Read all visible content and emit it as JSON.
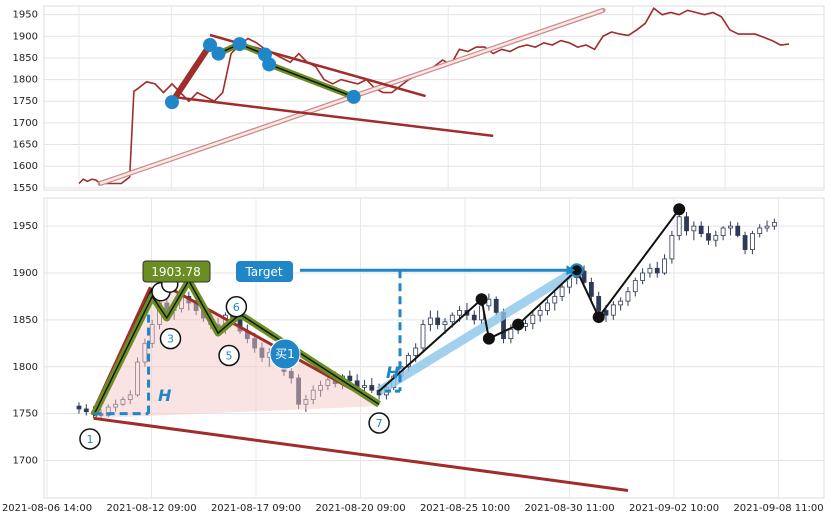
{
  "chart_data": [
    {
      "type": "line",
      "panel": "overview",
      "title": "",
      "xlabel": "",
      "ylabel": "",
      "ylim": [
        1545,
        1970
      ],
      "yticks": [
        1550,
        1600,
        1650,
        1700,
        1750,
        1800,
        1850,
        1900,
        1950
      ],
      "grid": true,
      "series": [
        {
          "color": "#a02c2c",
          "values": [
            [
              0,
              1560
            ],
            [
              1,
              1570
            ],
            [
              2,
              1565
            ],
            [
              3,
              1570
            ],
            [
              4,
              1568
            ],
            [
              5,
              1560
            ],
            [
              10,
              1560
            ],
            [
              12,
              1575
            ],
            [
              13,
              1773
            ],
            [
              14,
              1780
            ],
            [
              16,
              1795
            ],
            [
              18,
              1790
            ],
            [
              20,
              1770
            ],
            [
              22,
              1790
            ],
            [
              24,
              1770
            ],
            [
              26,
              1750
            ],
            [
              28,
              1770
            ],
            [
              30,
              1760
            ],
            [
              32,
              1750
            ],
            [
              34,
              1770
            ],
            [
              36,
              1860
            ],
            [
              38,
              1880
            ],
            [
              40,
              1895
            ],
            [
              42,
              1885
            ],
            [
              44,
              1870
            ],
            [
              46,
              1860
            ],
            [
              48,
              1850
            ],
            [
              50,
              1840
            ],
            [
              52,
              1860
            ],
            [
              54,
              1840
            ],
            [
              56,
              1830
            ],
            [
              58,
              1800
            ],
            [
              60,
              1790
            ],
            [
              62,
              1800
            ],
            [
              64,
              1795
            ],
            [
              66,
              1790
            ],
            [
              68,
              1800
            ],
            [
              70,
              1780
            ],
            [
              72,
              1770
            ],
            [
              74,
              1770
            ],
            [
              76,
              1785
            ],
            [
              78,
              1800
            ],
            [
              80,
              1810
            ],
            [
              82,
              1820
            ],
            [
              84,
              1830
            ],
            [
              86,
              1845
            ],
            [
              88,
              1835
            ],
            [
              90,
              1870
            ],
            [
              92,
              1865
            ],
            [
              94,
              1875
            ],
            [
              96,
              1875
            ],
            [
              98,
              1860
            ],
            [
              100,
              1870
            ],
            [
              102,
              1865
            ],
            [
              104,
              1875
            ],
            [
              106,
              1880
            ],
            [
              108,
              1875
            ],
            [
              110,
              1885
            ],
            [
              112,
              1880
            ],
            [
              114,
              1890
            ],
            [
              116,
              1885
            ],
            [
              118,
              1875
            ],
            [
              120,
              1880
            ],
            [
              122,
              1870
            ],
            [
              124,
              1900
            ],
            [
              126,
              1910
            ],
            [
              128,
              1905
            ],
            [
              130,
              1902
            ],
            [
              132,
              1915
            ],
            [
              134,
              1930
            ],
            [
              136,
              1965
            ],
            [
              138,
              1950
            ],
            [
              140,
              1955
            ],
            [
              142,
              1950
            ],
            [
              144,
              1960
            ],
            [
              146,
              1955
            ],
            [
              148,
              1950
            ],
            [
              150,
              1955
            ],
            [
              152,
              1945
            ],
            [
              154,
              1915
            ],
            [
              156,
              1905
            ],
            [
              158,
              1905
            ],
            [
              160,
              1905
            ],
            [
              162,
              1898
            ],
            [
              164,
              1890
            ],
            [
              166,
              1880
            ],
            [
              168,
              1882
            ]
          ]
        }
      ],
      "overlays": {
        "channel_upper": {
          "from": [
            31,
            1903
          ],
          "to": [
            82,
            1762
          ]
        },
        "channel_lower": {
          "from": [
            22,
            1760
          ],
          "to": [
            98,
            1670
          ]
        },
        "trend_line": {
          "from": [
            5,
            1560
          ],
          "to": [
            124,
            1960
          ]
        },
        "zigzag_points": [
          [
            22,
            1748
          ],
          [
            31,
            1880
          ],
          [
            33,
            1860
          ],
          [
            38,
            1882
          ],
          [
            44,
            1858
          ],
          [
            45,
            1835
          ],
          [
            65,
            1760
          ]
        ],
        "colors": {
          "red": "#a02c2c",
          "green": "#6b8e23",
          "blue": "#1f86c8"
        }
      }
    },
    {
      "type": "candlestick",
      "panel": "main",
      "title": "",
      "xlabel": "",
      "ylabel": "",
      "ylim": [
        1660,
        1980
      ],
      "yticks": [
        1700,
        1750,
        1800,
        1850,
        1900,
        1950
      ],
      "grid": true,
      "xticks": [
        "2021-08-06 14:00",
        "2021-08-12 09:00",
        "2021-08-17 09:00",
        "2021-08-20 09:00",
        "2021-08-25 10:00",
        "2021-08-30 11:00",
        "2021-09-02 10:00",
        "2021-09-08 11:00"
      ],
      "candles": [
        [
          0,
          1758,
          1762,
          1750,
          1755
        ],
        [
          1,
          1755,
          1760,
          1748,
          1752
        ],
        [
          2,
          1752,
          1758,
          1745,
          1750
        ],
        [
          3,
          1750,
          1755,
          1745,
          1748
        ],
        [
          4,
          1748,
          1760,
          1746,
          1757
        ],
        [
          5,
          1757,
          1765,
          1752,
          1760
        ],
        [
          6,
          1760,
          1768,
          1758,
          1765
        ],
        [
          7,
          1765,
          1775,
          1760,
          1770
        ],
        [
          8,
          1770,
          1810,
          1768,
          1805
        ],
        [
          9,
          1805,
          1830,
          1800,
          1825
        ],
        [
          10,
          1825,
          1850,
          1820,
          1845
        ],
        [
          11,
          1845,
          1875,
          1840,
          1868
        ],
        [
          12,
          1868,
          1880,
          1850,
          1860
        ],
        [
          13,
          1860,
          1870,
          1850,
          1862
        ],
        [
          14,
          1862,
          1880,
          1858,
          1875
        ],
        [
          15,
          1875,
          1880,
          1860,
          1868
        ],
        [
          16,
          1868,
          1872,
          1855,
          1860
        ],
        [
          17,
          1860,
          1865,
          1848,
          1852
        ],
        [
          18,
          1852,
          1858,
          1840,
          1845
        ],
        [
          19,
          1845,
          1852,
          1838,
          1840
        ],
        [
          20,
          1840,
          1858,
          1835,
          1855
        ],
        [
          21,
          1855,
          1862,
          1848,
          1850
        ],
        [
          22,
          1850,
          1855,
          1835,
          1838
        ],
        [
          23,
          1838,
          1845,
          1825,
          1830
        ],
        [
          24,
          1830,
          1836,
          1815,
          1820
        ],
        [
          25,
          1820,
          1826,
          1805,
          1810
        ],
        [
          26,
          1810,
          1820,
          1800,
          1815
        ],
        [
          27,
          1815,
          1822,
          1805,
          1808
        ],
        [
          28,
          1808,
          1812,
          1790,
          1795
        ],
        [
          29,
          1795,
          1800,
          1782,
          1788
        ],
        [
          30,
          1788,
          1792,
          1755,
          1760
        ],
        [
          31,
          1760,
          1770,
          1752,
          1765
        ],
        [
          32,
          1765,
          1780,
          1760,
          1775
        ],
        [
          33,
          1775,
          1785,
          1768,
          1780
        ],
        [
          34,
          1780,
          1790,
          1775,
          1786
        ],
        [
          35,
          1786,
          1795,
          1778,
          1782
        ],
        [
          36,
          1782,
          1792,
          1776,
          1790
        ],
        [
          37,
          1790,
          1796,
          1782,
          1785
        ],
        [
          38,
          1785,
          1792,
          1774,
          1778
        ],
        [
          39,
          1778,
          1786,
          1770,
          1780
        ],
        [
          40,
          1780,
          1788,
          1772,
          1775
        ],
        [
          41,
          1775,
          1782,
          1765,
          1770
        ],
        [
          42,
          1770,
          1780,
          1765,
          1778
        ],
        [
          43,
          1778,
          1792,
          1775,
          1790
        ],
        [
          44,
          1790,
          1805,
          1785,
          1800
        ],
        [
          45,
          1800,
          1815,
          1795,
          1812
        ],
        [
          46,
          1812,
          1825,
          1805,
          1820
        ],
        [
          47,
          1820,
          1850,
          1815,
          1845
        ],
        [
          48,
          1845,
          1860,
          1838,
          1852
        ],
        [
          49,
          1852,
          1860,
          1840,
          1845
        ],
        [
          50,
          1845,
          1852,
          1835,
          1848
        ],
        [
          51,
          1848,
          1858,
          1842,
          1855
        ],
        [
          52,
          1855,
          1865,
          1848,
          1860
        ],
        [
          53,
          1860,
          1868,
          1850,
          1855
        ],
        [
          54,
          1855,
          1860,
          1845,
          1850
        ],
        [
          55,
          1850,
          1870,
          1845,
          1865
        ],
        [
          56,
          1865,
          1878,
          1860,
          1872
        ],
        [
          57,
          1872,
          1875,
          1855,
          1858
        ],
        [
          58,
          1858,
          1862,
          1825,
          1830
        ],
        [
          59,
          1830,
          1845,
          1825,
          1840
        ],
        [
          60,
          1840,
          1848,
          1835,
          1843
        ],
        [
          61,
          1843,
          1850,
          1838,
          1846
        ],
        [
          62,
          1846,
          1860,
          1840,
          1855
        ],
        [
          63,
          1855,
          1865,
          1848,
          1860
        ],
        [
          64,
          1860,
          1872,
          1855,
          1868
        ],
        [
          65,
          1868,
          1880,
          1860,
          1875
        ],
        [
          66,
          1875,
          1890,
          1870,
          1885
        ],
        [
          67,
          1885,
          1898,
          1878,
          1895
        ],
        [
          68,
          1895,
          1906,
          1888,
          1902
        ],
        [
          69,
          1902,
          1908,
          1885,
          1890
        ],
        [
          70,
          1890,
          1895,
          1870,
          1875
        ],
        [
          71,
          1875,
          1880,
          1855,
          1860
        ],
        [
          72,
          1860,
          1866,
          1848,
          1855
        ],
        [
          73,
          1855,
          1870,
          1850,
          1866
        ],
        [
          74,
          1866,
          1874,
          1860,
          1870
        ],
        [
          75,
          1870,
          1885,
          1865,
          1880
        ],
        [
          76,
          1880,
          1895,
          1875,
          1892
        ],
        [
          77,
          1892,
          1905,
          1888,
          1900
        ],
        [
          78,
          1900,
          1910,
          1895,
          1905
        ],
        [
          79,
          1905,
          1912,
          1895,
          1900
        ],
        [
          80,
          1900,
          1920,
          1898,
          1915
        ],
        [
          81,
          1915,
          1945,
          1910,
          1940
        ],
        [
          82,
          1940,
          1968,
          1935,
          1960
        ],
        [
          83,
          1960,
          1965,
          1940,
          1945
        ],
        [
          84,
          1945,
          1955,
          1935,
          1950
        ],
        [
          85,
          1950,
          1955,
          1938,
          1942
        ],
        [
          86,
          1942,
          1950,
          1930,
          1935
        ],
        [
          87,
          1935,
          1945,
          1928,
          1940
        ],
        [
          88,
          1940,
          1950,
          1935,
          1948
        ],
        [
          89,
          1948,
          1955,
          1940,
          1950
        ],
        [
          90,
          1950,
          1954,
          1938,
          1940
        ],
        [
          91,
          1940,
          1944,
          1920,
          1925
        ],
        [
          92,
          1925,
          1945,
          1920,
          1942
        ],
        [
          93,
          1942,
          1952,
          1938,
          1948
        ],
        [
          94,
          1948,
          1956,
          1944,
          1950
        ],
        [
          95,
          1950,
          1958,
          1946,
          1954
        ]
      ],
      "labels": {
        "price_box": "1903.78",
        "target": "Target",
        "buy": "买1",
        "h_left": "H",
        "h_right": "H"
      },
      "numbered_points": [
        {
          "label": "1",
          "x": 1.5,
          "y": 1723
        },
        {
          "label": "3",
          "x": 12.5,
          "y": 1830
        },
        {
          "label": "5",
          "x": 20.5,
          "y": 1812
        },
        {
          "label": "6",
          "x": 21.5,
          "y": 1864
        },
        {
          "label": "7",
          "x": 41.0,
          "y": 1740
        }
      ],
      "lines": {
        "red_channel_upper": {
          "from": [
            11,
            1890
          ],
          "to": [
            41,
            1760
          ]
        },
        "red_channel_lower": {
          "from": [
            2,
            1745
          ],
          "to": [
            75,
            1668
          ]
        },
        "green_zigzag": [
          [
            2,
            1748
          ],
          [
            10,
            1875
          ],
          [
            12,
            1852
          ],
          [
            15,
            1892
          ],
          [
            19,
            1836
          ],
          [
            22,
            1856
          ],
          [
            41,
            1760
          ]
        ],
        "blue_trend": [
          [
            41,
            1774
          ],
          [
            68,
            1903
          ]
        ],
        "black_zigzag": [
          [
            41,
            1774
          ],
          [
            55,
            1872
          ],
          [
            56,
            1830
          ],
          [
            60,
            1845
          ],
          [
            68,
            1903
          ],
          [
            71,
            1853
          ],
          [
            82,
            1968
          ]
        ],
        "target_level": 1903,
        "h_left_level": [
          1750,
          1890
        ],
        "h_right_level": [
          1774,
          1903
        ]
      },
      "colors": {
        "red": "#a02c2c",
        "green": "#6b8e23",
        "blue": "#1f86c8",
        "candle": "#2f3b55"
      }
    }
  ]
}
